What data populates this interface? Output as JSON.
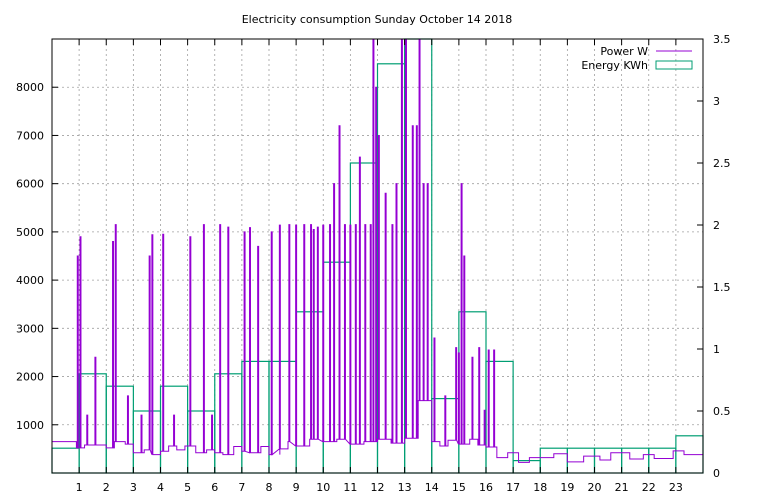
{
  "chart_data": {
    "type": "line",
    "title": "Electricity consumption Sunday October 14 2018",
    "x_axis": {
      "range": [
        0,
        24
      ],
      "ticks": [
        1,
        2,
        3,
        4,
        5,
        6,
        7,
        8,
        9,
        10,
        11,
        12,
        13,
        14,
        15,
        16,
        17,
        18,
        19,
        20,
        21,
        22,
        23
      ],
      "grid": true
    },
    "y_left": {
      "range": [
        0,
        9000
      ],
      "ticks": [
        1000,
        2000,
        3000,
        4000,
        5000,
        6000,
        7000,
        8000
      ],
      "grid": true
    },
    "y_right": {
      "range": [
        0,
        3.5
      ],
      "ticks": [
        0,
        0.5,
        1,
        1.5,
        2,
        2.5,
        3,
        3.5
      ],
      "tick_labels": [
        "0",
        "0.5",
        "1",
        "1.5",
        "2",
        "2.5",
        "3",
        "3.5"
      ]
    },
    "legend": {
      "placement": "top-right"
    },
    "series": [
      {
        "name": "Power W",
        "axis": "left",
        "style": "line",
        "color": "#9400d3",
        "baseline": [
          [
            0,
            650
          ],
          [
            0.9,
            650
          ],
          [
            0.9,
            520
          ],
          [
            1.2,
            520
          ],
          [
            1.2,
            580
          ],
          [
            2.0,
            580
          ],
          [
            2.0,
            520
          ],
          [
            2.3,
            520
          ],
          [
            2.3,
            650
          ],
          [
            2.7,
            650
          ],
          [
            2.7,
            600
          ],
          [
            3.0,
            600
          ],
          [
            3.0,
            420
          ],
          [
            3.4,
            420
          ],
          [
            3.4,
            480
          ],
          [
            3.7,
            480
          ],
          [
            3.7,
            380
          ],
          [
            4.0,
            380
          ],
          [
            4.0,
            450
          ],
          [
            4.3,
            450
          ],
          [
            4.3,
            560
          ],
          [
            4.6,
            560
          ],
          [
            4.6,
            480
          ],
          [
            4.9,
            480
          ],
          [
            4.9,
            560
          ],
          [
            5.3,
            560
          ],
          [
            5.3,
            420
          ],
          [
            5.7,
            420
          ],
          [
            5.7,
            480
          ],
          [
            6.0,
            480
          ],
          [
            6.0,
            420
          ],
          [
            6.3,
            420
          ],
          [
            6.3,
            380
          ],
          [
            6.7,
            380
          ],
          [
            6.7,
            550
          ],
          [
            7.0,
            550
          ],
          [
            7.0,
            450
          ],
          [
            7.3,
            450
          ],
          [
            7.3,
            420
          ],
          [
            7.7,
            420
          ],
          [
            7.7,
            550
          ],
          [
            8.0,
            550
          ],
          [
            8.0,
            380
          ],
          [
            8.4,
            380
          ],
          [
            8.4,
            500
          ],
          [
            8.7,
            500
          ],
          [
            8.7,
            650
          ],
          [
            9.0,
            650
          ],
          [
            9.0,
            560
          ],
          [
            9.5,
            560
          ],
          [
            9.5,
            700
          ],
          [
            10.0,
            700
          ],
          [
            10.0,
            650
          ],
          [
            10.5,
            650
          ],
          [
            10.5,
            700
          ],
          [
            11.0,
            700
          ],
          [
            11.0,
            600
          ],
          [
            11.5,
            600
          ],
          [
            11.5,
            650
          ],
          [
            12.0,
            650
          ],
          [
            12.0,
            700
          ],
          [
            12.5,
            700
          ],
          [
            12.5,
            620
          ],
          [
            13.0,
            620
          ],
          [
            13.0,
            720
          ],
          [
            13.5,
            720
          ],
          [
            13.5,
            1500
          ],
          [
            14.0,
            1500
          ],
          [
            14.0,
            650
          ],
          [
            14.3,
            650
          ],
          [
            14.3,
            560
          ],
          [
            14.6,
            560
          ],
          [
            14.6,
            680
          ],
          [
            15.0,
            680
          ],
          [
            15.0,
            600
          ],
          [
            15.4,
            600
          ],
          [
            15.4,
            700
          ],
          [
            15.7,
            700
          ],
          [
            15.7,
            580
          ],
          [
            16.0,
            580
          ],
          [
            16.0,
            540
          ],
          [
            16.4,
            540
          ],
          [
            16.4,
            320
          ],
          [
            16.8,
            320
          ],
          [
            16.8,
            420
          ],
          [
            17.2,
            420
          ],
          [
            17.2,
            220
          ],
          [
            17.6,
            220
          ],
          [
            17.6,
            320
          ],
          [
            18.5,
            320
          ],
          [
            18.5,
            400
          ],
          [
            19.0,
            400
          ],
          [
            19.0,
            230
          ],
          [
            19.6,
            230
          ],
          [
            19.6,
            350
          ],
          [
            20.2,
            350
          ],
          [
            20.2,
            270
          ],
          [
            20.6,
            270
          ],
          [
            20.6,
            420
          ],
          [
            21.3,
            420
          ],
          [
            21.3,
            290
          ],
          [
            21.8,
            290
          ],
          [
            21.8,
            380
          ],
          [
            22.2,
            380
          ],
          [
            22.2,
            300
          ],
          [
            22.9,
            300
          ],
          [
            22.9,
            460
          ],
          [
            23.3,
            460
          ],
          [
            23.3,
            380
          ],
          [
            24.0,
            380
          ],
          [
            24.0,
            460
          ]
        ],
        "spikes": [
          [
            0.95,
            4500
          ],
          [
            1.05,
            4900
          ],
          [
            1.3,
            1200
          ],
          [
            1.6,
            2400
          ],
          [
            2.25,
            4800
          ],
          [
            2.35,
            5150
          ],
          [
            2.8,
            1600
          ],
          [
            3.3,
            1200
          ],
          [
            3.6,
            4500
          ],
          [
            3.7,
            4950
          ],
          [
            4.1,
            4950
          ],
          [
            4.5,
            1200
          ],
          [
            5.1,
            4900
          ],
          [
            5.6,
            5150
          ],
          [
            5.9,
            1200
          ],
          [
            6.2,
            5150
          ],
          [
            6.5,
            5100
          ],
          [
            7.1,
            5000
          ],
          [
            7.3,
            5100
          ],
          [
            7.6,
            4700
          ],
          [
            8.1,
            5000
          ],
          [
            8.4,
            5150
          ],
          [
            8.75,
            5150
          ],
          [
            9.0,
            5150
          ],
          [
            9.3,
            5150
          ],
          [
            9.55,
            5150
          ],
          [
            9.65,
            5050
          ],
          [
            9.8,
            5100
          ],
          [
            10.0,
            5150
          ],
          [
            10.25,
            5150
          ],
          [
            10.4,
            6000
          ],
          [
            10.6,
            7200
          ],
          [
            10.8,
            5150
          ],
          [
            11.0,
            5150
          ],
          [
            11.2,
            5150
          ],
          [
            11.35,
            6550
          ],
          [
            11.55,
            5150
          ],
          [
            11.75,
            5150
          ],
          [
            11.85,
            9000
          ],
          [
            11.95,
            8000
          ],
          [
            12.05,
            7000
          ],
          [
            12.3,
            5800
          ],
          [
            12.55,
            5150
          ],
          [
            12.7,
            6000
          ],
          [
            12.9,
            9000
          ],
          [
            13.05,
            9000
          ],
          [
            13.3,
            7200
          ],
          [
            13.45,
            7200
          ],
          [
            13.55,
            9000
          ],
          [
            13.7,
            6000
          ],
          [
            13.85,
            6000
          ],
          [
            14.1,
            2800
          ],
          [
            14.5,
            1600
          ],
          [
            14.9,
            2600
          ],
          [
            15.0,
            2500
          ],
          [
            15.1,
            6000
          ],
          [
            15.2,
            4500
          ],
          [
            15.5,
            2400
          ],
          [
            15.75,
            2600
          ],
          [
            15.95,
            1300
          ],
          [
            16.1,
            2550
          ],
          [
            16.3,
            2550
          ]
        ]
      },
      {
        "name": "Energy KWh",
        "axis": "right",
        "style": "histeps",
        "color": "#009e73",
        "hours": [
          0,
          1,
          2,
          3,
          4,
          5,
          6,
          7,
          8,
          9,
          10,
          11,
          12,
          13,
          14,
          15,
          16,
          17,
          18,
          19,
          20,
          21,
          22,
          23
        ],
        "values": [
          0.2,
          0.8,
          0.7,
          0.5,
          0.7,
          0.5,
          0.8,
          0.9,
          0.9,
          1.3,
          1.7,
          2.5,
          3.3,
          3.5,
          0.6,
          1.3,
          0.9,
          0.1,
          0.2,
          0.2,
          0.2,
          0.2,
          0.2,
          0.3
        ]
      }
    ]
  }
}
